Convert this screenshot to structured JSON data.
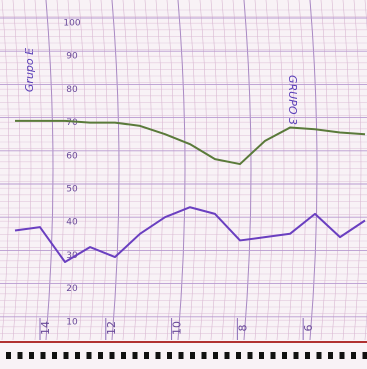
{
  "chart_data": {
    "type": "line",
    "annotations": [
      "Grupo E",
      "GRUPO 3"
    ],
    "x": [
      14.76,
      14.0,
      13.24,
      12.48,
      11.72,
      10.96,
      10.2,
      9.44,
      8.68,
      7.92,
      7.16,
      6.4,
      5.64,
      4.88,
      4.12
    ],
    "series": [
      {
        "color": "#5a7a3a",
        "values": [
          69,
          69,
          69,
          68.5,
          68.5,
          67.5,
          65,
          62,
          57.5,
          56,
          63,
          67,
          66.5,
          65.5,
          65
        ]
      },
      {
        "color": "#6a3fc0",
        "values": [
          36,
          37,
          26.5,
          31,
          28,
          35,
          40,
          43,
          41,
          33,
          34,
          35,
          41,
          34,
          39
        ]
      }
    ],
    "xlim": [
      14.76,
      4.12
    ],
    "xticks": [
      14,
      12,
      10,
      8,
      6
    ],
    "ylim": [
      0,
      100
    ],
    "yticks": [
      10,
      20,
      30,
      40,
      50,
      60,
      70,
      80,
      90,
      100
    ],
    "grid": true
  }
}
